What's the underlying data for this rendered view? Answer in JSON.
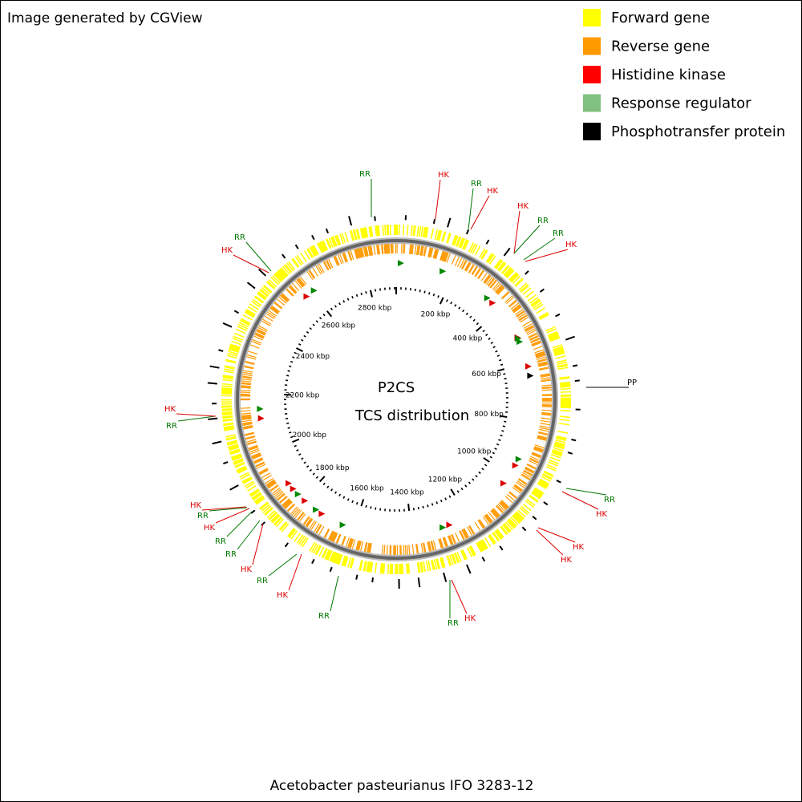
{
  "header": {
    "credit": "Image generated by CGView"
  },
  "legend": [
    "Forward gene",
    "Reverse gene",
    "Histidine kinase",
    "Response regulator",
    "Phosphotransfer protein"
  ],
  "center": {
    "title": "P2CS",
    "subtitle": "TCS distribution"
  },
  "footer": "Acetobacter pasteurianus IFO 3283-12",
  "scale_labels": [
    "200 kbp",
    "400 kbp",
    "600 kbp",
    "800 kbp",
    "1000 kbp",
    "1200 kbp",
    "1400 kbp",
    "1600 kbp",
    "1800 kbp",
    "2000 kbp",
    "2200 kbp",
    "2400 kbp",
    "2600 kbp",
    "2800 kbp"
  ],
  "features": [
    "RR",
    "HK",
    "RR",
    "HK",
    "HK",
    "RR",
    "RR",
    "HK",
    "PP",
    "RR",
    "HK",
    "HK",
    "HK",
    "HK",
    "RR",
    "RR",
    "HK",
    "RR",
    "HK",
    "RR",
    "RR",
    "HK",
    "RR",
    "HK",
    "RR",
    "HK",
    "HK",
    "RR"
  ]
}
